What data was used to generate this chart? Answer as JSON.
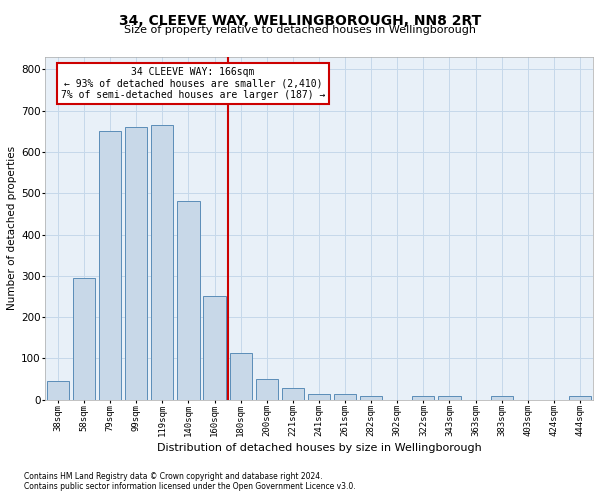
{
  "title": "34, CLEEVE WAY, WELLINGBOROUGH, NN8 2RT",
  "subtitle": "Size of property relative to detached houses in Wellingborough",
  "xlabel": "Distribution of detached houses by size in Wellingborough",
  "ylabel": "Number of detached properties",
  "categories": [
    "38sqm",
    "58sqm",
    "79sqm",
    "99sqm",
    "119sqm",
    "140sqm",
    "160sqm",
    "180sqm",
    "200sqm",
    "221sqm",
    "241sqm",
    "261sqm",
    "282sqm",
    "302sqm",
    "322sqm",
    "343sqm",
    "363sqm",
    "383sqm",
    "403sqm",
    "424sqm",
    "444sqm"
  ],
  "values": [
    45,
    295,
    650,
    660,
    665,
    480,
    250,
    113,
    50,
    28,
    15,
    15,
    8,
    0,
    8,
    8,
    0,
    8,
    0,
    0,
    8
  ],
  "bar_color": "#c8d8e8",
  "bar_edge_color": "#5b8db8",
  "grid_color": "#c5d8ea",
  "background_color": "#e8f0f8",
  "vline_x": 6.5,
  "vline_color": "#cc0000",
  "annotation_line1": "34 CLEEVE WAY: 166sqm",
  "annotation_line2": "← 93% of detached houses are smaller (2,410)",
  "annotation_line3": "7% of semi-detached houses are larger (187) →",
  "annotation_box_color": "#ffffff",
  "annotation_box_edge_color": "#cc0000",
  "footer_line1": "Contains HM Land Registry data © Crown copyright and database right 2024.",
  "footer_line2": "Contains public sector information licensed under the Open Government Licence v3.0.",
  "ylim": [
    0,
    830
  ],
  "yticks": [
    0,
    100,
    200,
    300,
    400,
    500,
    600,
    700,
    800
  ]
}
